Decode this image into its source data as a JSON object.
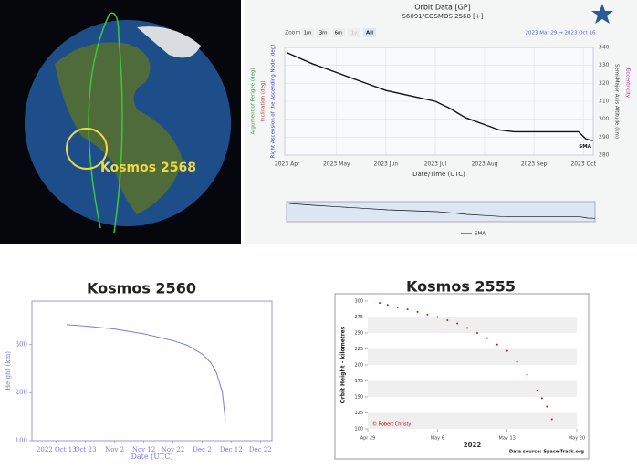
{
  "globe": {
    "label": "Kosmos 2568"
  },
  "chart_data": [
    {
      "type": "line",
      "title": "Orbit Data [GP]",
      "subtitle": "S6091/COSMOS 2568 [+]",
      "zoom_label": "Zoom",
      "zoom_options": [
        "1m",
        "3m",
        "6m",
        "1y",
        "All"
      ],
      "date_range": "2023 Mar 29 → 2023 Oct 16",
      "xlabel": "Date/Time (UTC)",
      "left_axis_labels": [
        {
          "text": "Argument of Perigee (deg)",
          "color": "#3a9a3a"
        },
        {
          "text": "Inclination (deg)",
          "color": "#c03030"
        },
        {
          "text": "Right Ascension of the Ascending Node (deg)",
          "color": "#3535c8"
        }
      ],
      "y2_labels": [
        {
          "text": "Semi-Major Axis Altitude (km)",
          "color": "#333333"
        },
        {
          "text": "Eccentricity",
          "color": "#a020a0"
        }
      ],
      "x": [
        0,
        0.5,
        1,
        1.5,
        2,
        2.5,
        3,
        3.3,
        3.6,
        4,
        4.3,
        4.6,
        5,
        5.5,
        5.9,
        6.05,
        6.2
      ],
      "xlim": [
        -0.05,
        6.2
      ],
      "xticks": [
        {
          "value": 0,
          "label": "2023 Apr"
        },
        {
          "value": 1,
          "label": "2023 May"
        },
        {
          "value": 2,
          "label": "2023 Jun"
        },
        {
          "value": 3,
          "label": "2023 Jul"
        },
        {
          "value": 4,
          "label": "2023 Aug"
        },
        {
          "value": 5,
          "label": "2023 Sep"
        },
        {
          "value": 6,
          "label": "2023 Oct"
        }
      ],
      "y2lim": [
        280,
        340
      ],
      "y2ticks": [
        280,
        290,
        300,
        310,
        320,
        330,
        340
      ],
      "grid": true,
      "series": [
        {
          "name": "SMA",
          "color": "#111111",
          "axis": "y2",
          "values": [
            337,
            331,
            326,
            321,
            316,
            313,
            310,
            306,
            301,
            297,
            294,
            293,
            293,
            293,
            293,
            289,
            288
          ]
        }
      ]
    },
    {
      "type": "line",
      "title": "Kosmos 2560",
      "ylabel": "Height (km)",
      "xlabel": "Date (UTC)",
      "x": [
        3.5,
        10,
        20,
        30,
        40,
        45,
        50,
        53,
        55,
        57,
        58
      ],
      "xlim": [
        -8.4,
        74
      ],
      "xticks": [
        {
          "value": 0,
          "label": "2022 Oct 13"
        },
        {
          "value": 10,
          "label": "Oct 23"
        },
        {
          "value": 20,
          "label": "Nov 2"
        },
        {
          "value": 30,
          "label": "Nov 12"
        },
        {
          "value": 40,
          "label": "Nov 22"
        },
        {
          "value": 50,
          "label": "Dec 2"
        },
        {
          "value": 60,
          "label": "Dec 12"
        },
        {
          "value": 70,
          "label": "Dec 22"
        }
      ],
      "ylim": [
        100,
        390
      ],
      "yticks": [
        100,
        200,
        300
      ],
      "grid": false,
      "series": [
        {
          "color": "#7b7be0",
          "values": [
            341,
            338,
            332,
            322,
            308,
            298,
            280,
            262,
            240,
            200,
            143
          ]
        }
      ]
    },
    {
      "type": "scatter",
      "title": "Kosmos 2555",
      "ylabel": "Orbit Height - kilometres",
      "xlabel": "2022",
      "credit": "© Robert Christy",
      "source": "Data source: Space-Track.org",
      "x": [
        1.2,
        2,
        3,
        4,
        5,
        6,
        7,
        8,
        9,
        10,
        11,
        12,
        13,
        14,
        15,
        16,
        17,
        17.5,
        18,
        18.5
      ],
      "xlim": [
        0,
        21
      ],
      "xticks": [
        {
          "value": 0,
          "label": "Apr 29"
        },
        {
          "value": 7,
          "label": "May 6"
        },
        {
          "value": 14,
          "label": "May 13"
        },
        {
          "value": 21,
          "label": "May 20"
        }
      ],
      "ylim": [
        100,
        300
      ],
      "yticks": [
        100,
        125,
        150,
        175,
        200,
        225,
        250,
        275,
        300
      ],
      "grid": true,
      "series": [
        {
          "color": "#d01010",
          "values": [
            297,
            294,
            290,
            287,
            283,
            279,
            275,
            270,
            265,
            258,
            250,
            242,
            232,
            222,
            205,
            185,
            160,
            148,
            135,
            115
          ]
        }
      ]
    }
  ]
}
